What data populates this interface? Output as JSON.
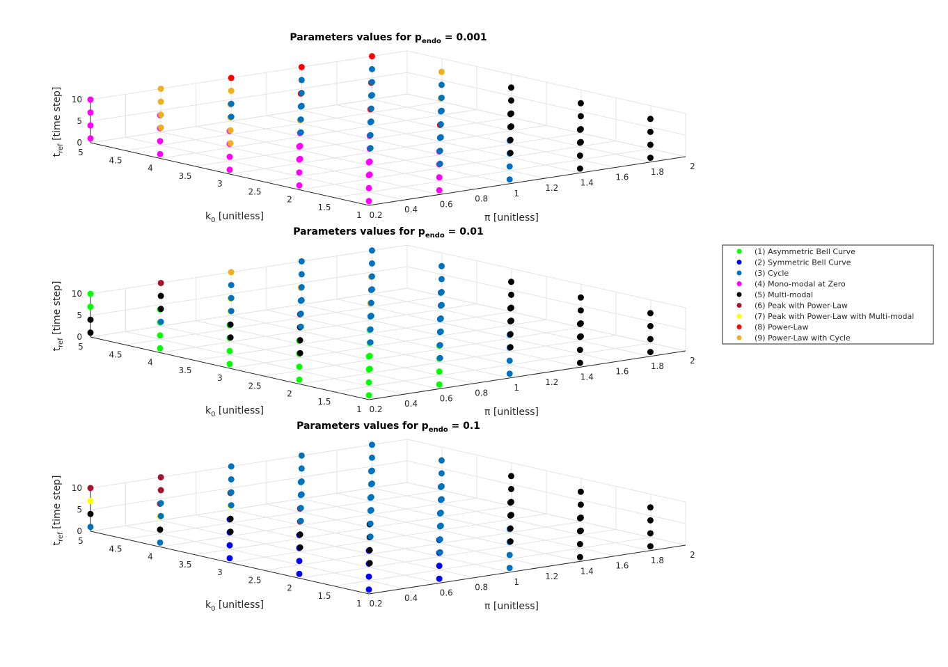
{
  "chart_data": [
    {
      "type": "scatter3d",
      "title": {
        "text": "Parameters values for p",
        "sub": "endo",
        "rest": " = 0.001"
      },
      "xlabel": "π [unitless]",
      "ylabel": {
        "text": "k",
        "sub": "0",
        "rest": " [unitless]"
      },
      "zlabel": {
        "text": "t",
        "sub": "ref",
        "rest": " [time step]"
      },
      "xlim": [
        0.2,
        2
      ],
      "ylim": [
        1,
        5
      ],
      "zlim": [
        0,
        10
      ],
      "xticks": [
        0.2,
        0.4,
        0.6,
        0.8,
        1,
        1.2,
        1.4,
        1.6,
        1.8,
        2
      ],
      "yticks": [
        1,
        1.5,
        2,
        2.5,
        3,
        3.5,
        4,
        4.5,
        5
      ],
      "zticks": [
        0,
        5,
        10
      ],
      "x": [
        0.2,
        0.6,
        1,
        1.4,
        1.8
      ],
      "y": [
        1,
        2,
        3,
        4,
        5
      ],
      "z": [
        1,
        4,
        7,
        10
      ],
      "classes": [
        [
          [
            4,
            4,
            4,
            4
          ],
          [
            4,
            4,
            4,
            4
          ],
          [
            3,
            3,
            3,
            3
          ],
          [
            5,
            5,
            5,
            5
          ],
          [
            5,
            5,
            5,
            5
          ]
        ],
        [
          [
            4,
            4,
            4,
            4
          ],
          [
            4,
            4,
            4,
            4
          ],
          [
            3,
            3,
            3,
            8
          ],
          [
            5,
            5,
            5,
            5
          ],
          [
            5,
            5,
            5,
            5
          ]
        ],
        [
          [
            4,
            4,
            4,
            4
          ],
          [
            4,
            4,
            4,
            9
          ],
          [
            3,
            3,
            3,
            8
          ],
          [
            3,
            3,
            3,
            9
          ],
          [
            5,
            5,
            5,
            5
          ]
        ],
        [
          [
            4,
            4,
            4,
            4
          ],
          [
            9,
            9,
            9,
            9
          ],
          [
            3,
            3,
            3,
            8
          ],
          [
            3,
            3,
            3,
            8
          ],
          [
            3,
            3,
            3,
            9
          ]
        ],
        [
          [
            4,
            4,
            4,
            4
          ],
          [
            9,
            9,
            9,
            9
          ],
          [
            3,
            3,
            9,
            8
          ],
          [
            3,
            3,
            3,
            8
          ],
          [
            3,
            3,
            3,
            8
          ]
        ]
      ]
    },
    {
      "type": "scatter3d",
      "title": {
        "text": "Parameters values for p",
        "sub": "endo",
        "rest": " = 0.01"
      },
      "xlabel": "π [unitless]",
      "ylabel": {
        "text": "k",
        "sub": "0",
        "rest": " [unitless]"
      },
      "zlabel": {
        "text": "t",
        "sub": "ref",
        "rest": " [time step]"
      },
      "xlim": [
        0.2,
        2
      ],
      "ylim": [
        1,
        5
      ],
      "zlim": [
        0,
        10
      ],
      "xticks": [
        0.2,
        0.4,
        0.6,
        0.8,
        1,
        1.2,
        1.4,
        1.6,
        1.8,
        2
      ],
      "yticks": [
        1,
        1.5,
        2,
        2.5,
        3,
        3.5,
        4,
        4.5,
        5
      ],
      "zticks": [
        0,
        5,
        10
      ],
      "x": [
        0.2,
        0.6,
        1,
        1.4,
        1.8
      ],
      "y": [
        1,
        2,
        3,
        4,
        5
      ],
      "z": [
        1,
        4,
        7,
        10
      ],
      "classes": [
        [
          [
            1,
            1,
            1,
            1
          ],
          [
            1,
            1,
            1,
            1
          ],
          [
            3,
            3,
            3,
            3
          ],
          [
            5,
            5,
            5,
            5
          ],
          [
            5,
            5,
            5,
            5
          ]
        ],
        [
          [
            1,
            1,
            1,
            1
          ],
          [
            1,
            1,
            1,
            1
          ],
          [
            3,
            3,
            3,
            3
          ],
          [
            5,
            5,
            5,
            5
          ],
          [
            5,
            5,
            5,
            5
          ]
        ],
        [
          [
            1,
            1,
            1,
            1
          ],
          [
            5,
            5,
            5,
            6
          ],
          [
            3,
            3,
            3,
            9
          ],
          [
            3,
            3,
            3,
            3
          ],
          [
            5,
            5,
            5,
            5
          ]
        ],
        [
          [
            1,
            1,
            1,
            1
          ],
          [
            5,
            5,
            7,
            7
          ],
          [
            3,
            3,
            3,
            9
          ],
          [
            3,
            3,
            3,
            9
          ],
          [
            3,
            3,
            3,
            3
          ]
        ],
        [
          [
            5,
            5,
            1,
            1
          ],
          [
            3,
            5,
            5,
            6
          ],
          [
            3,
            3,
            3,
            9
          ],
          [
            3,
            3,
            3,
            3
          ],
          [
            3,
            3,
            3,
            3
          ]
        ]
      ]
    },
    {
      "type": "scatter3d",
      "title": {
        "text": "Parameters values for p",
        "sub": "endo",
        "rest": " = 0.1"
      },
      "xlabel": "π [unitless]",
      "ylabel": {
        "text": "k",
        "sub": "0",
        "rest": " [unitless]"
      },
      "zlabel": {
        "text": "t",
        "sub": "ref",
        "rest": " [time step]"
      },
      "xlim": [
        0.2,
        2
      ],
      "ylim": [
        1,
        5
      ],
      "zlim": [
        0,
        10
      ],
      "xticks": [
        0.2,
        0.4,
        0.6,
        0.8,
        1,
        1.2,
        1.4,
        1.6,
        1.8,
        2
      ],
      "yticks": [
        1,
        1.5,
        2,
        2.5,
        3,
        3.5,
        4,
        4.5,
        5
      ],
      "zticks": [
        0,
        5,
        10
      ],
      "x": [
        0.2,
        0.6,
        1,
        1.4,
        1.8
      ],
      "y": [
        1,
        2,
        3,
        4,
        5
      ],
      "z": [
        1,
        4,
        7,
        10
      ],
      "classes": [
        [
          [
            2,
            2,
            2,
            2
          ],
          [
            2,
            2,
            2,
            2
          ],
          [
            3,
            3,
            3,
            3
          ],
          [
            5,
            5,
            5,
            5
          ],
          [
            5,
            5,
            5,
            5
          ]
        ],
        [
          [
            2,
            2,
            2,
            2
          ],
          [
            5,
            5,
            5,
            5
          ],
          [
            3,
            3,
            3,
            3
          ],
          [
            5,
            5,
            5,
            5
          ],
          [
            5,
            5,
            5,
            5
          ]
        ],
        [
          [
            2,
            2,
            2,
            2
          ],
          [
            5,
            5,
            6,
            6
          ],
          [
            3,
            3,
            3,
            3
          ],
          [
            3,
            3,
            3,
            3
          ],
          [
            5,
            5,
            5,
            5
          ]
        ],
        [
          [
            3,
            5,
            7,
            6
          ],
          [
            5,
            5,
            7,
            6
          ],
          [
            3,
            3,
            3,
            3
          ],
          [
            3,
            3,
            3,
            3
          ],
          [
            3,
            3,
            3,
            3
          ]
        ],
        [
          [
            3,
            5,
            7,
            6
          ],
          [
            3,
            3,
            6,
            6
          ],
          [
            3,
            3,
            3,
            3
          ],
          [
            3,
            3,
            3,
            3
          ],
          [
            3,
            3,
            3,
            3
          ]
        ]
      ]
    }
  ],
  "legend": {
    "corner": "right",
    "entries": [
      {
        "name": "(1) Asymmetric Bell Curve",
        "color": "#00ff00"
      },
      {
        "name": "(2) Symmetric Bell Curve",
        "color": "#0000ff"
      },
      {
        "name": "(3) Cycle",
        "color": "#0072bd"
      },
      {
        "name": "(4) Mono-modal at Zero",
        "color": "#ff00ff"
      },
      {
        "name": "(5) Multi-modal",
        "color": "#000000"
      },
      {
        "name": "(6) Peak with Power-Law",
        "color": "#a2142f"
      },
      {
        "name": "(7) Peak with Power-Law with Multi-modal",
        "color": "#ffff00"
      },
      {
        "name": "(8) Power-Law",
        "color": "#ff0000"
      },
      {
        "name": "(9) Power-Law with Cycle",
        "color": "#edb120"
      }
    ]
  }
}
